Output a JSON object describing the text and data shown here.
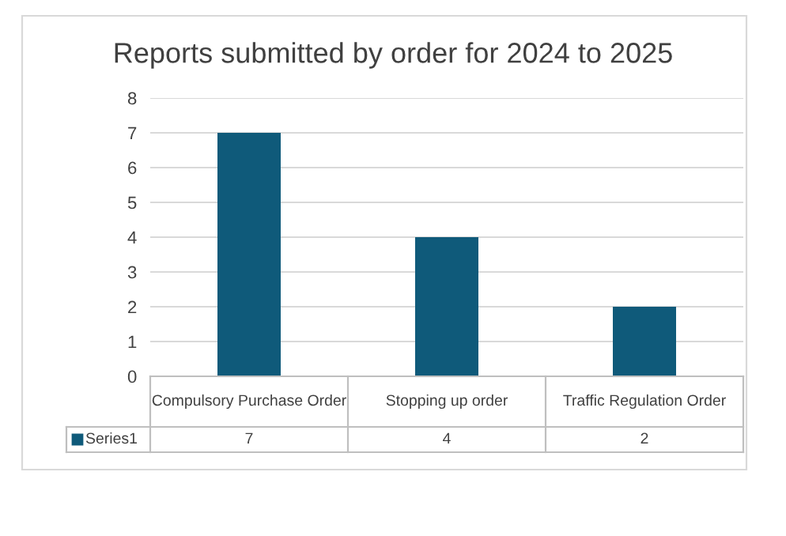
{
  "chart_data": {
    "type": "bar",
    "title": "Reports submitted by order for 2024 to 2025",
    "categories": [
      "Compulsory Purchase Order",
      "Stopping up order",
      "Traffic Regulation Order"
    ],
    "series": [
      {
        "name": "Series1",
        "color": "#0f5a7a",
        "values": [
          7,
          4,
          2
        ]
      }
    ],
    "ylim": [
      0,
      8
    ],
    "yticks": [
      0,
      1,
      2,
      3,
      4,
      5,
      6,
      7,
      8
    ],
    "grid": "y",
    "data_labels": true
  }
}
